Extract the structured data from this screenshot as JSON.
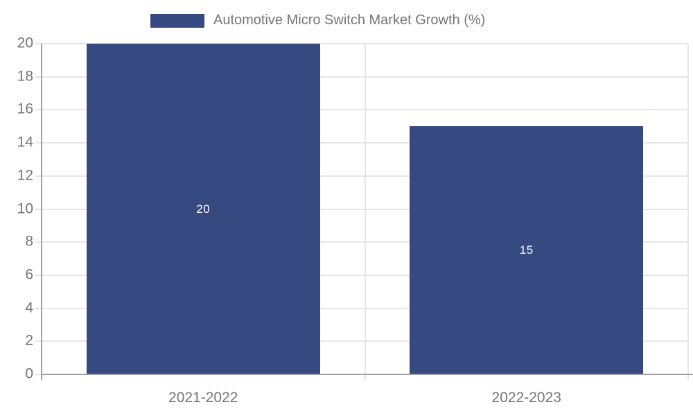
{
  "chart_data": {
    "type": "bar",
    "title": "Automotive Micro Switch Market Growth (%)",
    "categories": [
      "2021-2022",
      "2022-2023"
    ],
    "values": [
      20,
      15
    ],
    "data_labels": [
      "20",
      "15"
    ],
    "xlabel": "",
    "ylabel": "",
    "ylim": [
      0,
      20
    ],
    "yticks": [
      0,
      2,
      4,
      6,
      8,
      10,
      12,
      14,
      16,
      18,
      20
    ],
    "grid": true,
    "legend_position": "top-center",
    "colors": {
      "bar": "#364A81",
      "bar_value_label": "#ffffff",
      "axis_text": "#757575",
      "gridline": "#e6e6e6",
      "axis_line": "#a0a0a0"
    }
  }
}
